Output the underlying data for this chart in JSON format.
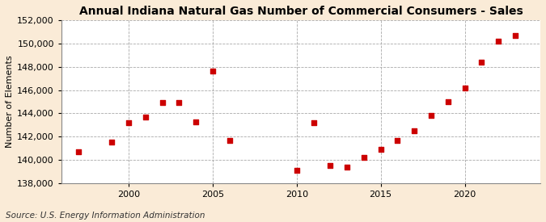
{
  "title": "Annual Indiana Natural Gas Number of Commercial Consumers - Sales",
  "ylabel": "Number of Elements",
  "source": "Source: U.S. Energy Information Administration",
  "background_color": "#faebd7",
  "plot_background_color": "#ffffff",
  "marker_color": "#cc0000",
  "marker_style": "s",
  "marker_size": 4,
  "years": [
    1997,
    1999,
    2000,
    2001,
    2002,
    2003,
    2004,
    2005,
    2006,
    2010,
    2011,
    2012,
    2013,
    2014,
    2015,
    2016,
    2017,
    2018,
    2019,
    2020,
    2021,
    2022,
    2023
  ],
  "values": [
    140700,
    141500,
    143200,
    143700,
    144900,
    144900,
    143300,
    147600,
    141700,
    139100,
    143200,
    139500,
    139400,
    140200,
    140900,
    141700,
    142500,
    143800,
    145000,
    146200,
    148400,
    150200,
    150700
  ],
  "ylim": [
    138000,
    152000
  ],
  "yticks": [
    138000,
    140000,
    142000,
    144000,
    146000,
    148000,
    150000,
    152000
  ],
  "xlim": [
    1996,
    2024.5
  ],
  "xticks": [
    2000,
    2005,
    2010,
    2015,
    2020
  ],
  "grid_color": "#aaaaaa",
  "grid_linestyle": "--",
  "grid_linewidth": 0.6,
  "title_fontsize": 10,
  "tick_fontsize": 8,
  "ylabel_fontsize": 8,
  "source_fontsize": 7.5
}
